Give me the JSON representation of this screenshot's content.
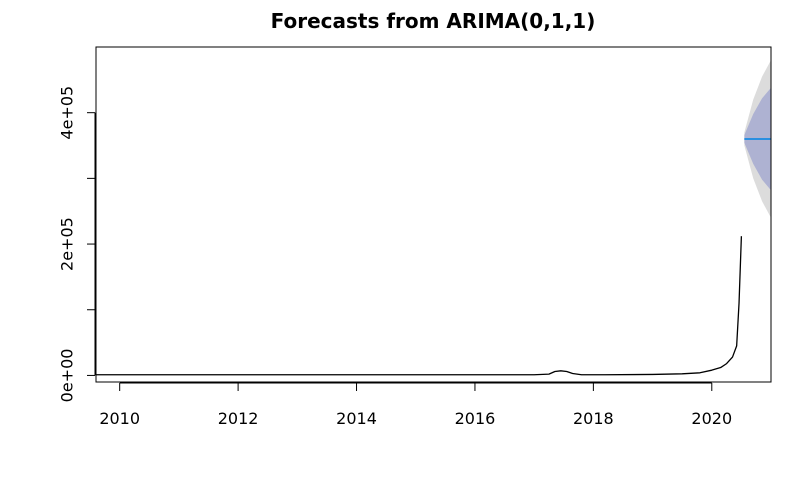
{
  "chart_data": {
    "type": "line",
    "title": "Forecasts from ARIMA(0,1,1)",
    "xlabel": "",
    "ylabel": "",
    "xlim": [
      2009.6,
      2021.0
    ],
    "ylim": [
      -10000,
      500000
    ],
    "x_ticks": [
      2010,
      2012,
      2014,
      2016,
      2018,
      2020
    ],
    "x_tick_labels": [
      "2010",
      "2012",
      "2014",
      "2016",
      "2018",
      "2020"
    ],
    "y_major_ticks": [
      0,
      200000,
      400000
    ],
    "y_minor_ticks": [
      100000,
      300000
    ],
    "y_tick_labels": [
      "0e+00",
      "2e+05",
      "4e+05"
    ],
    "grid": false,
    "legend": "none",
    "series": [
      {
        "role": "observed",
        "color": "#000000",
        "x": [
          2009.6,
          2012.0,
          2014.0,
          2016.0,
          2017.0,
          2017.25,
          2017.35,
          2017.45,
          2017.55,
          2017.65,
          2017.8,
          2018.2,
          2019.0,
          2019.5,
          2019.8,
          2020.0,
          2020.15,
          2020.25,
          2020.35,
          2020.42,
          2020.46,
          2020.5
        ],
        "y": [
          1000,
          1000,
          1000,
          1000,
          1000,
          2000,
          6000,
          7000,
          6000,
          3000,
          1000,
          1000,
          1500,
          2500,
          4000,
          8000,
          12000,
          18000,
          28000,
          45000,
          110000,
          212000
        ]
      },
      {
        "role": "forecast_mean",
        "color": "#2b8fe0",
        "x": [
          2020.55,
          2021.0
        ],
        "y": [
          360000,
          360000
        ]
      }
    ],
    "intervals": [
      {
        "role": "interval_95",
        "color": "#dcdcdc",
        "x": [
          2020.55,
          2020.7,
          2020.85,
          2021.0
        ],
        "lower": [
          350000,
          300000,
          265000,
          240000
        ],
        "upper": [
          370000,
          420000,
          455000,
          480000
        ]
      },
      {
        "role": "interval_80",
        "color": "#aeb2d2",
        "x": [
          2020.55,
          2020.7,
          2020.85,
          2021.0
        ],
        "lower": [
          354000,
          322000,
          298000,
          282000
        ],
        "upper": [
          366000,
          398000,
          422000,
          438000
        ]
      }
    ]
  }
}
